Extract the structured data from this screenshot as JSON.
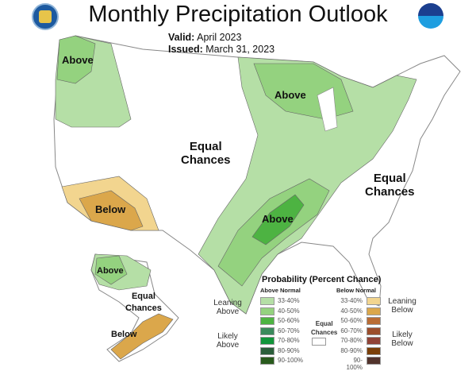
{
  "header": {
    "title": "Monthly Precipitation Outlook",
    "valid_label": "Valid:",
    "valid_value": "April 2023",
    "issued_label": "Issued:",
    "issued_value": "March 31, 2023"
  },
  "logos": {
    "left": "doc-seal",
    "right": "noaa-logo"
  },
  "map_labels": {
    "nw_above": "Above",
    "midwest_above": "Above",
    "central_equal": "Equal\nChances",
    "southwest_below": "Below",
    "east_equal": "Equal\nChances",
    "south_above": "Above",
    "alaska_above": "Above",
    "alaska_equal": "Equal\nChances",
    "alaska_below": "Below"
  },
  "legend": {
    "title": "Probability (Percent Chance)",
    "above_header": "Above Normal",
    "below_header": "Below Normal",
    "equal_label": "Equal\nChances",
    "above": [
      {
        "range": "33-40%",
        "color": "#b5dfa6"
      },
      {
        "range": "40-50%",
        "color": "#94d27f"
      },
      {
        "range": "50-60%",
        "color": "#4db342"
      },
      {
        "range": "60-70%",
        "color": "#3b8a5c"
      },
      {
        "range": "70-80%",
        "color": "#12953a"
      },
      {
        "range": "80-90%",
        "color": "#2b5e3a"
      },
      {
        "range": "90-100%",
        "color": "#285a1c"
      }
    ],
    "below": [
      {
        "range": "33-40%",
        "color": "#f2d58f"
      },
      {
        "range": "40-50%",
        "color": "#dba74b"
      },
      {
        "range": "50-60%",
        "color": "#b96c34"
      },
      {
        "range": "60-70%",
        "color": "#9c4e2b"
      },
      {
        "range": "70-80%",
        "color": "#914336"
      },
      {
        "range": "80-90%",
        "color": "#7b3f08"
      },
      {
        "range": "90-100%",
        "color": "#52332c"
      }
    ],
    "leaning_above": "Leaning\nAbove",
    "likely_above": "Likely\nAbove",
    "leaning_below": "Leaning\nBelow",
    "likely_below": "Likely\nBelow"
  }
}
